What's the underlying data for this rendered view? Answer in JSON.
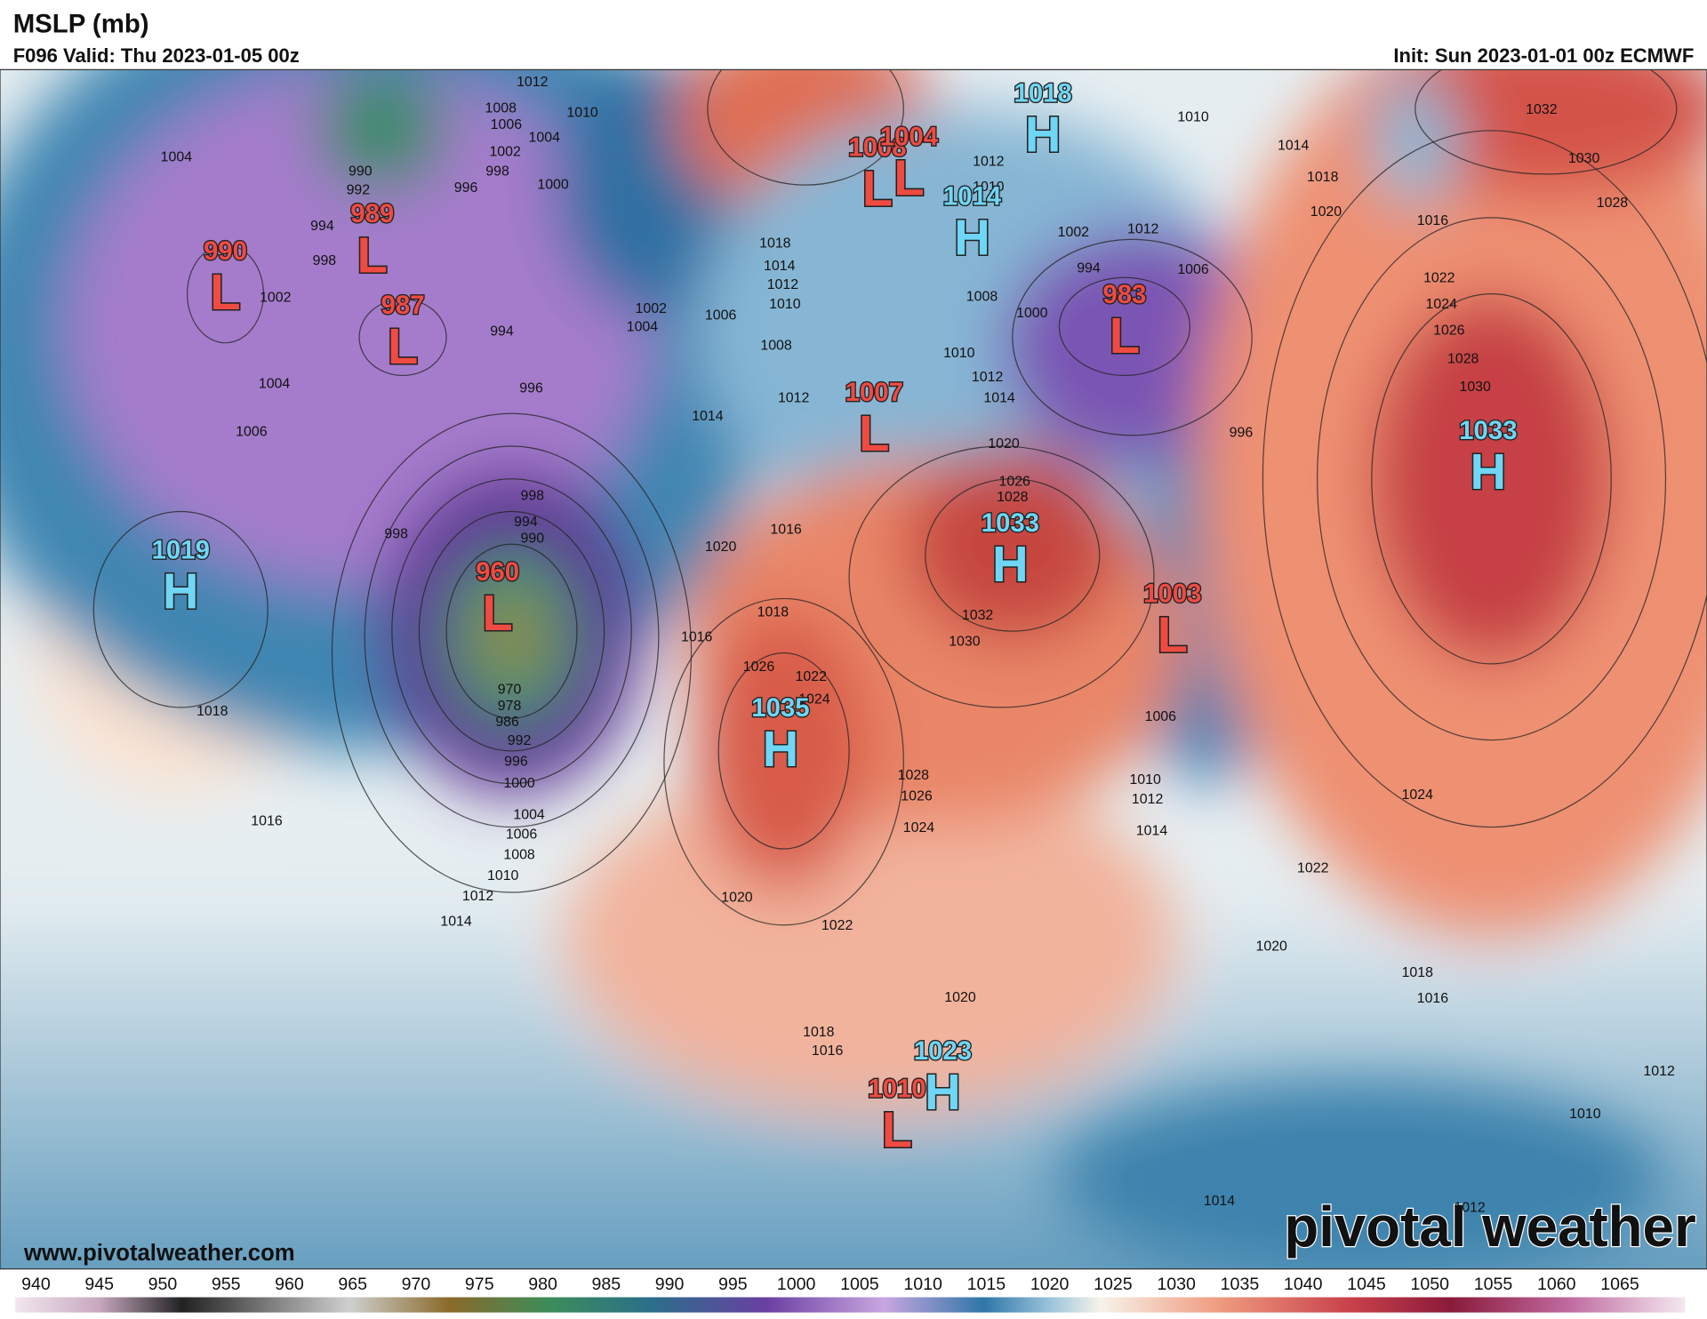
{
  "header": {
    "title": "MSLP (mb)",
    "valid": "F096 Valid: Thu 2023-01-05 00z",
    "init": "Init: Sun 2023-01-01 00z ECMWF"
  },
  "centers": [
    {
      "type": "L",
      "value": 990
    },
    {
      "type": "L",
      "value": 989
    },
    {
      "type": "L",
      "value": 987
    },
    {
      "type": "L",
      "value": 960
    },
    {
      "type": "H",
      "value": 1019
    },
    {
      "type": "L",
      "value": 1008
    },
    {
      "type": "L",
      "value": 1004
    },
    {
      "type": "H",
      "value": 1018
    },
    {
      "type": "H",
      "value": 1014
    },
    {
      "type": "L",
      "value": 983
    },
    {
      "type": "L",
      "value": 1007
    },
    {
      "type": "H",
      "value": 1033
    },
    {
      "type": "L",
      "value": 1003
    },
    {
      "type": "H",
      "value": 1033
    },
    {
      "type": "H",
      "value": 1035
    },
    {
      "type": "H",
      "value": 1023
    },
    {
      "type": "L",
      "value": 1010
    }
  ],
  "contour_labels": [
    1012,
    1008,
    1006,
    1004,
    1002,
    998,
    1010,
    1000,
    996,
    990,
    992,
    994,
    998,
    1004,
    1002,
    1004,
    1006,
    996,
    994,
    998,
    998,
    994,
    990,
    970,
    978,
    986,
    992,
    996,
    1000,
    1004,
    1006,
    1008,
    1010,
    1012,
    1014,
    1016,
    1018,
    1002,
    1004,
    1006,
    1008,
    1018,
    1014,
    1012,
    1010,
    1014,
    1012,
    1016,
    1020,
    1016,
    1018,
    1026,
    1022,
    1024,
    1028,
    1026,
    1024,
    1020,
    1022,
    1020,
    1018,
    1016,
    1024,
    1022,
    1020,
    1018,
    1016,
    1012,
    1010,
    1012,
    1014,
    1014,
    1018,
    1020,
    1016,
    1030,
    1028,
    1032,
    1022,
    1024,
    1026,
    1028,
    1030,
    1010,
    1012,
    1006,
    1002,
    994,
    996,
    1006,
    1010,
    1012,
    1014,
    1020,
    1026,
    1028,
    1032,
    1030,
    1012,
    1010,
    1008,
    1000,
    1010,
    1012,
    1014
  ],
  "colorbar": {
    "ticks": [
      940,
      945,
      950,
      955,
      960,
      965,
      970,
      975,
      980,
      985,
      990,
      995,
      1000,
      1005,
      1010,
      1015,
      1020,
      1025,
      1030,
      1035,
      1040,
      1045,
      1050,
      1055,
      1060,
      1065
    ]
  },
  "footer": {
    "url": "www.pivotalweather.com",
    "logo": "pivotal weather"
  }
}
